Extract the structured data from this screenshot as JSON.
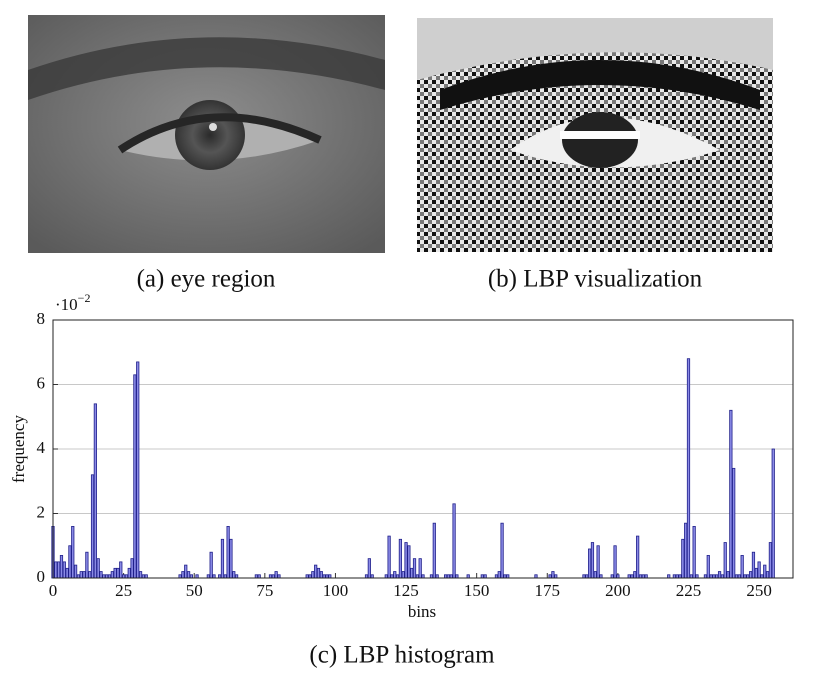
{
  "figure": {
    "captions": {
      "a": "(a) eye region",
      "b": "(b) LBP visualization",
      "c": "(c) LBP histogram"
    }
  },
  "chart_data": {
    "type": "bar",
    "xlabel": "bins",
    "ylabel": "frequency",
    "yscale": {
      "base": "·10",
      "exponent": "−2"
    },
    "color": "#8a8ae6",
    "edge_color": "#1f1f8a",
    "grid": true,
    "xlim": [
      0,
      262
    ],
    "xticks": [
      0,
      25,
      50,
      75,
      100,
      125,
      150,
      175,
      200,
      225,
      250
    ],
    "ylim": [
      0,
      8
    ],
    "yticks": [
      0,
      2,
      4,
      6,
      8
    ],
    "x": [
      0,
      1,
      2,
      3,
      4,
      5,
      6,
      7,
      8,
      9,
      10,
      11,
      12,
      13,
      14,
      15,
      16,
      17,
      18,
      19,
      20,
      21,
      22,
      23,
      24,
      25,
      26,
      27,
      28,
      29,
      30,
      31,
      32,
      33,
      34,
      35,
      36,
      37,
      38,
      39,
      40,
      41,
      42,
      43,
      44,
      45,
      46,
      47,
      48,
      49,
      50,
      51,
      52,
      53,
      54,
      55,
      56,
      57,
      58,
      59,
      60,
      61,
      62,
      63,
      64,
      65,
      66,
      67,
      68,
      69,
      70,
      71,
      72,
      73,
      74,
      75,
      76,
      77,
      78,
      79,
      80,
      81,
      82,
      83,
      84,
      85,
      86,
      87,
      88,
      89,
      90,
      91,
      92,
      93,
      94,
      95,
      96,
      97,
      98,
      99,
      100,
      101,
      102,
      103,
      104,
      105,
      106,
      107,
      108,
      109,
      110,
      111,
      112,
      113,
      114,
      115,
      116,
      117,
      118,
      119,
      120,
      121,
      122,
      123,
      124,
      125,
      126,
      127,
      128,
      129,
      130,
      131,
      132,
      133,
      134,
      135,
      136,
      137,
      138,
      139,
      140,
      141,
      142,
      143,
      144,
      145,
      146,
      147,
      148,
      149,
      150,
      151,
      152,
      153,
      154,
      155,
      156,
      157,
      158,
      159,
      160,
      161,
      162,
      163,
      164,
      165,
      166,
      167,
      168,
      169,
      170,
      171,
      172,
      173,
      174,
      175,
      176,
      177,
      178,
      179,
      180,
      181,
      182,
      183,
      184,
      185,
      186,
      187,
      188,
      189,
      190,
      191,
      192,
      193,
      194,
      195,
      196,
      197,
      198,
      199,
      200,
      201,
      202,
      203,
      204,
      205,
      206,
      207,
      208,
      209,
      210,
      211,
      212,
      213,
      214,
      215,
      216,
      217,
      218,
      219,
      220,
      221,
      222,
      223,
      224,
      225,
      226,
      227,
      228,
      229,
      230,
      231,
      232,
      233,
      234,
      235,
      236,
      237,
      238,
      239,
      240,
      241,
      242,
      243,
      244,
      245,
      246,
      247,
      248,
      249,
      250,
      251,
      252,
      253,
      254,
      255
    ],
    "values": [
      1.6,
      0.5,
      0.5,
      0.7,
      0.5,
      0.3,
      1.0,
      1.6,
      0.4,
      0.1,
      0.2,
      0.2,
      0.8,
      0.2,
      3.2,
      5.4,
      0.6,
      0.2,
      0.1,
      0.1,
      0.1,
      0.2,
      0.3,
      0.3,
      0.5,
      0.1,
      0.1,
      0.3,
      0.6,
      6.3,
      6.7,
      0.2,
      0.1,
      0.1,
      0,
      0,
      0,
      0,
      0,
      0,
      0,
      0,
      0,
      0,
      0,
      0.1,
      0.2,
      0.4,
      0.2,
      0.1,
      0,
      0.1,
      0,
      0,
      0,
      0.1,
      0.8,
      0.1,
      0,
      0.1,
      1.2,
      0.1,
      1.6,
      1.2,
      0.2,
      0.1,
      0,
      0,
      0,
      0,
      0,
      0,
      0.1,
      0.1,
      0,
      0,
      0,
      0.1,
      0.1,
      0.2,
      0.1,
      0,
      0,
      0,
      0,
      0,
      0,
      0,
      0,
      0,
      0.1,
      0.1,
      0.2,
      0.4,
      0.3,
      0.2,
      0.1,
      0.1,
      0.1,
      0,
      0,
      0,
      0,
      0,
      0,
      0,
      0,
      0,
      0,
      0,
      0,
      0.1,
      0.6,
      0.1,
      0,
      0,
      0,
      0,
      0.1,
      1.3,
      0.1,
      0.2,
      0.1,
      1.2,
      0.2,
      1.1,
      1.0,
      0.3,
      0.6,
      0.1,
      0.6,
      0.1,
      0,
      0,
      0.1,
      1.7,
      0.1,
      0,
      0,
      0.1,
      0.1,
      0.1,
      2.3,
      0.1,
      0,
      0,
      0,
      0.1,
      0,
      0,
      0,
      0,
      0.1,
      0.1,
      0,
      0,
      0,
      0.1,
      0.2,
      1.7,
      0.1,
      0.1,
      0,
      0,
      0,
      0,
      0,
      0,
      0,
      0,
      0,
      0.1,
      0,
      0,
      0,
      0,
      0.1,
      0.2,
      0.1,
      0,
      0,
      0,
      0,
      0,
      0,
      0,
      0,
      0,
      0.1,
      0.1,
      0.9,
      1.1,
      0.2,
      1.0,
      0.1,
      0,
      0,
      0,
      0.1,
      1.0,
      0.1,
      0,
      0,
      0,
      0.1,
      0.1,
      0.2,
      1.3,
      0.1,
      0.1,
      0.1,
      0,
      0,
      0,
      0,
      0,
      0,
      0,
      0.1,
      0,
      0.1,
      0.1,
      0.1,
      1.2,
      1.7,
      6.8,
      0.1,
      1.6,
      0.1,
      0,
      0,
      0.1,
      0.7,
      0.1,
      0.1,
      0.1,
      0.2,
      0.1,
      1.1,
      0.2,
      5.2,
      3.4,
      0.1,
      0.1,
      0.7,
      0.1,
      0.1,
      0.2,
      0.8,
      0.3,
      0.5,
      0.1,
      0.4,
      0.2,
      1.1,
      4.0
    ]
  }
}
